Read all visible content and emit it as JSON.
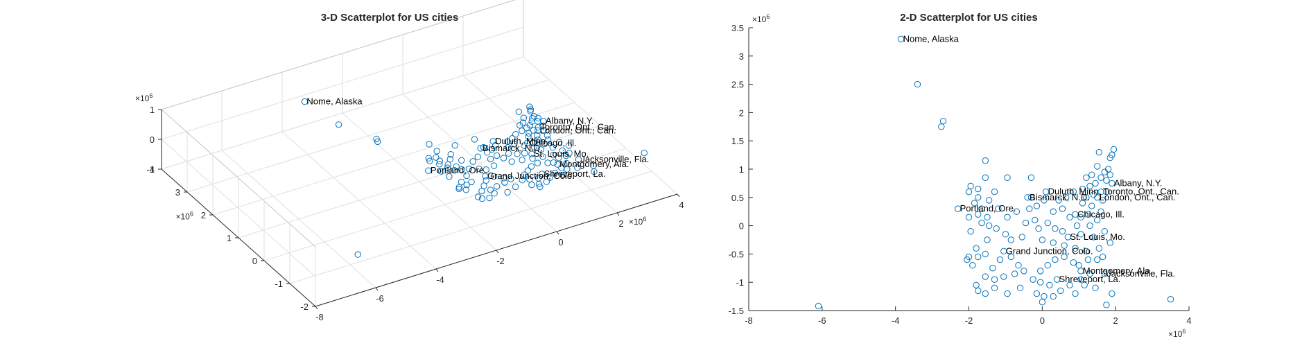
{
  "colors": {
    "marker": "#0072BD",
    "axis": "#262626",
    "grid": "#dfdfdf"
  },
  "chart_data": [
    {
      "type": "scatter",
      "title": "3-D Scatterplot for US cities",
      "xlim": [
        -8,
        4
      ],
      "ylim": [
        -2,
        4
      ],
      "zlim": [
        -1,
        1
      ],
      "x_ticks": [
        "-8",
        "-6",
        "-4",
        "-2",
        "0",
        "2",
        "4"
      ],
      "y_ticks": [
        "-2",
        "-1",
        "0",
        "1",
        "2",
        "3",
        "4"
      ],
      "z_ticks": [
        "-1",
        "0",
        "1"
      ],
      "x_exponent": "6",
      "y_exponent": "6",
      "z_exponent": "6",
      "grid": true,
      "points": [
        {
          "x": -3.85,
          "y": 3.3,
          "z": 0.5,
          "label": "Nome, Alaska"
        },
        {
          "x": -3.4,
          "y": 2.5,
          "z": 0.2
        },
        {
          "x": -2.7,
          "y": 1.85,
          "z": 0.0
        },
        {
          "x": -2.75,
          "y": 1.75,
          "z": 0.0
        },
        {
          "x": -6.1,
          "y": -1.42,
          "z": -0.3
        },
        {
          "x": 1.9,
          "y": 0.75,
          "z": 0,
          "label": "Albany, N.Y."
        },
        {
          "x": 1.6,
          "y": 0.6,
          "z": 0,
          "label": "Toronto, Ont., Can."
        },
        {
          "x": 1.5,
          "y": 0.5,
          "z": 0,
          "label": "London, Ont., Can."
        },
        {
          "x": 0.1,
          "y": 0.6,
          "z": 0,
          "label": "Duluth, Minn."
        },
        {
          "x": -0.4,
          "y": 0.5,
          "z": 0,
          "label": "Bismarck, N.D."
        },
        {
          "x": 0.9,
          "y": 0.2,
          "z": 0,
          "label": "Chicago, Ill."
        },
        {
          "x": -2.3,
          "y": 0.3,
          "z": 0,
          "label": "Portland, Ore."
        },
        {
          "x": 0.7,
          "y": -0.2,
          "z": 0,
          "label": "St. Louis, Mo."
        },
        {
          "x": 1.7,
          "y": -0.85,
          "z": 0,
          "label": "Jacksonville, Fla."
        },
        {
          "x": 1.05,
          "y": -0.8,
          "z": 0,
          "label": "Montgomery, Ala."
        },
        {
          "x": -1.05,
          "y": -0.45,
          "z": 0,
          "label": "Grand Junction, Colo."
        },
        {
          "x": 0.4,
          "y": -0.95,
          "z": 0,
          "label": "Shreveport, La."
        },
        {
          "x": 3.5,
          "y": -1.3,
          "z": 0
        },
        {
          "x": 1.95,
          "y": 1.35,
          "z": 0
        },
        {
          "x": 1.9,
          "y": 1.25,
          "z": 0
        },
        {
          "x": 1.85,
          "y": 1.2,
          "z": 0
        },
        {
          "x": 1.55,
          "y": 1.3,
          "z": 0
        },
        {
          "x": 1.5,
          "y": 1.05,
          "z": 0
        },
        {
          "x": 1.8,
          "y": 1.0,
          "z": 0
        },
        {
          "x": 1.7,
          "y": 0.95,
          "z": 0
        },
        {
          "x": 1.35,
          "y": 0.9,
          "z": 0
        },
        {
          "x": 1.2,
          "y": 0.85,
          "z": 0
        },
        {
          "x": 1.6,
          "y": 0.85,
          "z": 0
        },
        {
          "x": 1.85,
          "y": 0.9,
          "z": 0
        },
        {
          "x": 1.75,
          "y": 0.8,
          "z": 0
        },
        {
          "x": 1.45,
          "y": 0.75,
          "z": 0
        },
        {
          "x": 1.3,
          "y": 0.7,
          "z": 0
        },
        {
          "x": 1.1,
          "y": 0.65,
          "z": 0
        },
        {
          "x": 1.75,
          "y": 0.6,
          "z": 0
        },
        {
          "x": 1.4,
          "y": 0.55,
          "z": 0
        },
        {
          "x": 1.2,
          "y": 0.5,
          "z": 0
        },
        {
          "x": 1.65,
          "y": 0.45,
          "z": 0
        },
        {
          "x": 1.1,
          "y": 0.4,
          "z": 0
        },
        {
          "x": 1.35,
          "y": 0.35,
          "z": 0
        },
        {
          "x": 1.6,
          "y": 0.25,
          "z": 0
        },
        {
          "x": 1.25,
          "y": 0.2,
          "z": 0
        },
        {
          "x": 1.05,
          "y": 0.15,
          "z": 0
        },
        {
          "x": 1.5,
          "y": 0.1,
          "z": 0
        },
        {
          "x": 1.3,
          "y": 0.0,
          "z": 0
        },
        {
          "x": 0.95,
          "y": 0.0,
          "z": 0
        },
        {
          "x": 0.75,
          "y": 0.15,
          "z": 0
        },
        {
          "x": 0.55,
          "y": 0.3,
          "z": 0
        },
        {
          "x": 0.65,
          "y": 0.5,
          "z": 0
        },
        {
          "x": 0.45,
          "y": 0.45,
          "z": 0
        },
        {
          "x": 0.85,
          "y": 0.6,
          "z": 0
        },
        {
          "x": 0.3,
          "y": 0.25,
          "z": 0
        },
        {
          "x": 0.15,
          "y": 0.05,
          "z": 0
        },
        {
          "x": 0.35,
          "y": -0.05,
          "z": 0
        },
        {
          "x": 0.55,
          "y": -0.1,
          "z": 0
        },
        {
          "x": 1.05,
          "y": -0.15,
          "z": 0
        },
        {
          "x": 1.4,
          "y": -0.2,
          "z": 0
        },
        {
          "x": 1.7,
          "y": -0.1,
          "z": 0
        },
        {
          "x": 1.85,
          "y": -0.3,
          "z": 0
        },
        {
          "x": 1.55,
          "y": -0.4,
          "z": 0
        },
        {
          "x": 1.2,
          "y": -0.45,
          "z": 0
        },
        {
          "x": 0.9,
          "y": -0.4,
          "z": 0
        },
        {
          "x": 0.6,
          "y": -0.35,
          "z": 0
        },
        {
          "x": 0.3,
          "y": -0.3,
          "z": 0
        },
        {
          "x": 0.0,
          "y": -0.25,
          "z": 0
        },
        {
          "x": -0.1,
          "y": -0.05,
          "z": 0
        },
        {
          "x": -0.2,
          "y": 0.1,
          "z": 0
        },
        {
          "x": -0.35,
          "y": 0.3,
          "z": 0
        },
        {
          "x": -0.3,
          "y": 0.5,
          "z": 0
        },
        {
          "x": -0.15,
          "y": 0.35,
          "z": 0
        },
        {
          "x": 0.05,
          "y": 0.45,
          "z": 0
        },
        {
          "x": -0.3,
          "y": 0.85,
          "z": 0
        },
        {
          "x": -0.95,
          "y": 0.85,
          "z": 0
        },
        {
          "x": -1.55,
          "y": 0.85,
          "z": 0
        },
        {
          "x": -1.55,
          "y": 1.15,
          "z": 0
        },
        {
          "x": -1.3,
          "y": 0.6,
          "z": 0
        },
        {
          "x": -1.45,
          "y": 0.45,
          "z": 0
        },
        {
          "x": -1.75,
          "y": 0.65,
          "z": 0
        },
        {
          "x": -1.95,
          "y": 0.7,
          "z": 0
        },
        {
          "x": -2.0,
          "y": 0.6,
          "z": 0
        },
        {
          "x": -1.75,
          "y": 0.5,
          "z": 0
        },
        {
          "x": -1.85,
          "y": 0.4,
          "z": 0
        },
        {
          "x": -1.65,
          "y": 0.3,
          "z": 0
        },
        {
          "x": -2.0,
          "y": 0.15,
          "z": 0
        },
        {
          "x": -1.75,
          "y": 0.2,
          "z": 0
        },
        {
          "x": -1.5,
          "y": 0.15,
          "z": 0
        },
        {
          "x": -1.2,
          "y": 0.3,
          "z": 0
        },
        {
          "x": -0.95,
          "y": 0.15,
          "z": 0
        },
        {
          "x": -0.7,
          "y": 0.25,
          "z": 0
        },
        {
          "x": -0.45,
          "y": 0.05,
          "z": 0
        },
        {
          "x": -0.55,
          "y": -0.2,
          "z": 0
        },
        {
          "x": -0.85,
          "y": -0.25,
          "z": 0
        },
        {
          "x": -1.0,
          "y": -0.15,
          "z": 0
        },
        {
          "x": -1.25,
          "y": -0.05,
          "z": 0
        },
        {
          "x": -1.45,
          "y": 0.0,
          "z": 0
        },
        {
          "x": -1.65,
          "y": 0.05,
          "z": 0
        },
        {
          "x": -1.95,
          "y": -0.1,
          "z": 0
        },
        {
          "x": -1.5,
          "y": -0.25,
          "z": 0
        },
        {
          "x": -1.8,
          "y": -0.4,
          "z": 0
        },
        {
          "x": -2.0,
          "y": -0.55,
          "z": 0
        },
        {
          "x": -2.05,
          "y": -0.6,
          "z": 0
        },
        {
          "x": -1.75,
          "y": -0.55,
          "z": 0
        },
        {
          "x": -1.9,
          "y": -0.7,
          "z": 0
        },
        {
          "x": -1.55,
          "y": -0.5,
          "z": 0
        },
        {
          "x": -1.35,
          "y": -0.75,
          "z": 0
        },
        {
          "x": -1.15,
          "y": -0.6,
          "z": 0
        },
        {
          "x": -0.85,
          "y": -0.55,
          "z": 0
        },
        {
          "x": -0.65,
          "y": -0.7,
          "z": 0
        },
        {
          "x": -0.5,
          "y": -0.8,
          "z": 0
        },
        {
          "x": -0.75,
          "y": -0.85,
          "z": 0
        },
        {
          "x": -1.05,
          "y": -0.9,
          "z": 0
        },
        {
          "x": -1.3,
          "y": -0.95,
          "z": 0
        },
        {
          "x": -1.55,
          "y": -0.9,
          "z": 0
        },
        {
          "x": -1.8,
          "y": -1.05,
          "z": 0
        },
        {
          "x": -1.75,
          "y": -1.15,
          "z": 0
        },
        {
          "x": -1.55,
          "y": -1.2,
          "z": 0
        },
        {
          "x": -1.3,
          "y": -1.1,
          "z": 0
        },
        {
          "x": -0.95,
          "y": -1.2,
          "z": 0
        },
        {
          "x": -0.6,
          "y": -1.1,
          "z": 0
        },
        {
          "x": -0.25,
          "y": -0.95,
          "z": 0
        },
        {
          "x": -0.05,
          "y": -0.8,
          "z": 0
        },
        {
          "x": 0.15,
          "y": -0.7,
          "z": 0
        },
        {
          "x": 0.35,
          "y": -0.6,
          "z": 0
        },
        {
          "x": 0.6,
          "y": -0.55,
          "z": 0
        },
        {
          "x": 0.85,
          "y": -0.65,
          "z": 0
        },
        {
          "x": 1.0,
          "y": -0.7,
          "z": 0
        },
        {
          "x": 1.25,
          "y": -0.6,
          "z": 0
        },
        {
          "x": 1.5,
          "y": -0.6,
          "z": 0
        },
        {
          "x": 1.65,
          "y": -0.55,
          "z": 0
        },
        {
          "x": 1.3,
          "y": -0.85,
          "z": 0
        },
        {
          "x": 1.05,
          "y": -0.95,
          "z": 0
        },
        {
          "x": 0.75,
          "y": -1.05,
          "z": 0
        },
        {
          "x": 0.5,
          "y": -1.15,
          "z": 0
        },
        {
          "x": 0.2,
          "y": -1.05,
          "z": 0
        },
        {
          "x": -0.05,
          "y": -1.0,
          "z": 0
        },
        {
          "x": -0.15,
          "y": -1.2,
          "z": 0
        },
        {
          "x": 0.05,
          "y": -1.25,
          "z": 0
        },
        {
          "x": 0.3,
          "y": -1.25,
          "z": 0
        },
        {
          "x": 0.9,
          "y": -1.2,
          "z": 0
        },
        {
          "x": 1.15,
          "y": -1.05,
          "z": 0
        },
        {
          "x": 1.45,
          "y": -1.1,
          "z": 0
        },
        {
          "x": 1.75,
          "y": -1.4,
          "z": 0
        },
        {
          "x": 1.9,
          "y": -1.2,
          "z": 0
        },
        {
          "x": 0.0,
          "y": -1.35,
          "z": 0
        }
      ]
    },
    {
      "type": "scatter",
      "title": "2-D Scatterplot for US cities",
      "xlim": [
        -8,
        4
      ],
      "ylim": [
        -1.5,
        3.5
      ],
      "x_ticks": [
        "-8",
        "-6",
        "-4",
        "-2",
        "0",
        "2",
        "4"
      ],
      "y_ticks": [
        "-1.5",
        "-1",
        "-0.5",
        "0",
        "0.5",
        "1",
        "1.5",
        "2",
        "2.5",
        "3",
        "3.5"
      ],
      "x_exponent": "6",
      "y_exponent": "6",
      "grid": false
    }
  ]
}
